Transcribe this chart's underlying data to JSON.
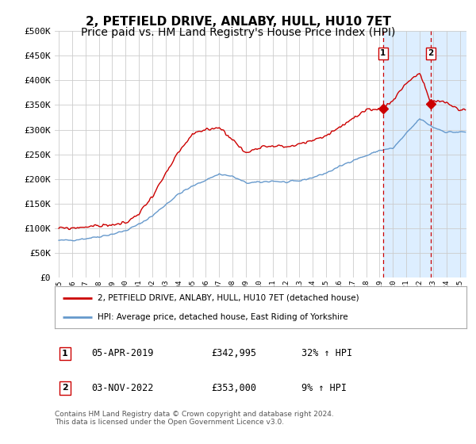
{
  "title": "2, PETFIELD DRIVE, ANLABY, HULL, HU10 7ET",
  "subtitle": "Price paid vs. HM Land Registry's House Price Index (HPI)",
  "legend_label_red": "2, PETFIELD DRIVE, ANLABY, HULL, HU10 7ET (detached house)",
  "legend_label_blue": "HPI: Average price, detached house, East Riding of Yorkshire",
  "footer": "Contains HM Land Registry data © Crown copyright and database right 2024.\nThis data is licensed under the Open Government Licence v3.0.",
  "sale1_date": 2019.26,
  "sale1_price": 342995,
  "sale1_label": "05-APR-2019",
  "sale1_price_str": "£342,995",
  "sale1_hpi_str": "32% ↑ HPI",
  "sale2_date": 2022.84,
  "sale2_price": 353000,
  "sale2_label": "03-NOV-2022",
  "sale2_price_str": "£353,000",
  "sale2_hpi_str": "9% ↑ HPI",
  "ylim": [
    0,
    500000
  ],
  "xlim_start": 1994.7,
  "xlim_end": 2025.5,
  "yticks": [
    0,
    50000,
    100000,
    150000,
    200000,
    250000,
    300000,
    350000,
    400000,
    450000,
    500000
  ],
  "ytick_labels": [
    "£0",
    "£50K",
    "£100K",
    "£150K",
    "£200K",
    "£250K",
    "£300K",
    "£350K",
    "£400K",
    "£450K",
    "£500K"
  ],
  "red_color": "#cc0000",
  "blue_color": "#6699cc",
  "shade_color": "#ddeeff",
  "grid_color": "#cccccc",
  "bg_color": "#ffffff",
  "marker_box_color": "#cc0000",
  "title_fontsize": 11,
  "subtitle_fontsize": 10,
  "hpi_anchors_x": [
    1995,
    1996,
    1997,
    1998,
    1999,
    2000,
    2001,
    2002,
    2003,
    2004,
    2005,
    2006,
    2007,
    2008,
    2009,
    2010,
    2011,
    2012,
    2013,
    2014,
    2015,
    2016,
    2017,
    2018,
    2019,
    2020,
    2021,
    2022,
    2023,
    2024,
    2025
  ],
  "hpi_anchors_y": [
    75000,
    76000,
    79000,
    83000,
    88000,
    95000,
    108000,
    125000,
    148000,
    170000,
    185000,
    198000,
    210000,
    205000,
    192000,
    193000,
    196000,
    193000,
    196000,
    203000,
    212000,
    225000,
    238000,
    247000,
    258000,
    262000,
    292000,
    322000,
    305000,
    295000,
    295000
  ],
  "red_anchors_x": [
    1995,
    1996,
    1997,
    1998,
    1999,
    2000,
    2001,
    2002,
    2003,
    2004,
    2005,
    2006,
    2007,
    2008,
    2009,
    2010,
    2011,
    2012,
    2013,
    2014,
    2015,
    2016,
    2017,
    2018,
    2019,
    2019.26,
    2020,
    2021,
    2022,
    2022.84,
    2023,
    2024,
    2025
  ],
  "red_anchors_y": [
    100000,
    100000,
    103000,
    105000,
    107000,
    110000,
    130000,
    165000,
    210000,
    255000,
    290000,
    300000,
    305000,
    280000,
    252000,
    265000,
    268000,
    265000,
    270000,
    278000,
    288000,
    305000,
    322000,
    338000,
    342995,
    342995,
    360000,
    395000,
    415000,
    353000,
    358000,
    355000,
    340000
  ]
}
